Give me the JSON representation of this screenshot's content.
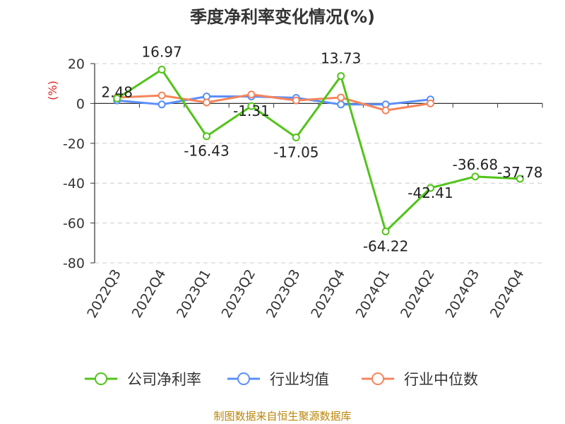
{
  "title": "季度净利率变化情况(%)",
  "source": "制图数据来自恒生聚源数据库",
  "chart_data": {
    "type": "line",
    "title": "季度净利率变化情况(%)",
    "ylabel": "(%)",
    "ylim": [
      -80,
      20
    ],
    "yticks": [
      20,
      0,
      -20,
      -40,
      -60,
      -80
    ],
    "grid": true,
    "legend_position": "bottom",
    "categories": [
      "2022Q3",
      "2022Q4",
      "2023Q1",
      "2023Q2",
      "2023Q3",
      "2023Q4",
      "2024Q1",
      "2024Q2",
      "2024Q3",
      "2024Q4"
    ],
    "series": [
      {
        "name": "公司净利率",
        "color": "#52c41a",
        "values": [
          2.48,
          16.97,
          -16.43,
          -1.31,
          -17.05,
          13.73,
          -64.22,
          -42.41,
          -36.68,
          -37.78
        ],
        "labels": [
          "2.48",
          "16.97",
          "-16.43",
          "-1.31",
          "-17.05",
          "13.73",
          "-64.22",
          "-42.41",
          "-36.68",
          "-37.78"
        ]
      },
      {
        "name": "行业均值",
        "color": "#5b8ff9",
        "values": [
          1.5,
          -0.5,
          3.5,
          3.5,
          2.8,
          -0.5,
          -0.5,
          2.0,
          null,
          null
        ]
      },
      {
        "name": "行业中位数",
        "color": "#f5855b",
        "values": [
          3.0,
          4.0,
          0.5,
          4.5,
          1.5,
          3.0,
          -3.5,
          0.0,
          null,
          null
        ]
      }
    ]
  }
}
